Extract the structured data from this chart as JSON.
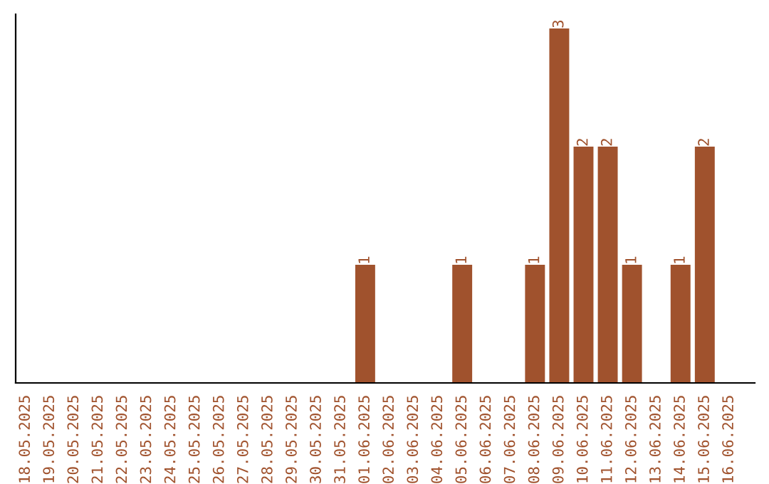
{
  "chart_data": {
    "type": "bar",
    "categories": [
      "18.05.2025",
      "19.05.2025",
      "20.05.2025",
      "21.05.2025",
      "22.05.2025",
      "23.05.2025",
      "24.05.2025",
      "25.05.2025",
      "26.05.2025",
      "27.05.2025",
      "28.05.2025",
      "29.05.2025",
      "30.05.2025",
      "31.05.2025",
      "01.06.2025",
      "02.06.2025",
      "03.06.2025",
      "04.06.2025",
      "05.06.2025",
      "06.06.2025",
      "07.06.2025",
      "08.06.2025",
      "09.06.2025",
      "10.06.2025",
      "11.06.2025",
      "12.06.2025",
      "13.06.2025",
      "14.06.2025",
      "15.06.2025",
      "16.06.2025"
    ],
    "values": [
      null,
      null,
      null,
      null,
      null,
      null,
      null,
      null,
      null,
      null,
      null,
      null,
      null,
      null,
      1,
      null,
      null,
      null,
      1,
      null,
      null,
      1,
      3,
      2,
      2,
      1,
      null,
      1,
      2,
      null
    ],
    "data_labels": true,
    "color": "#a0522d",
    "tick_labels": "x",
    "grid": false,
    "legend": false
  }
}
